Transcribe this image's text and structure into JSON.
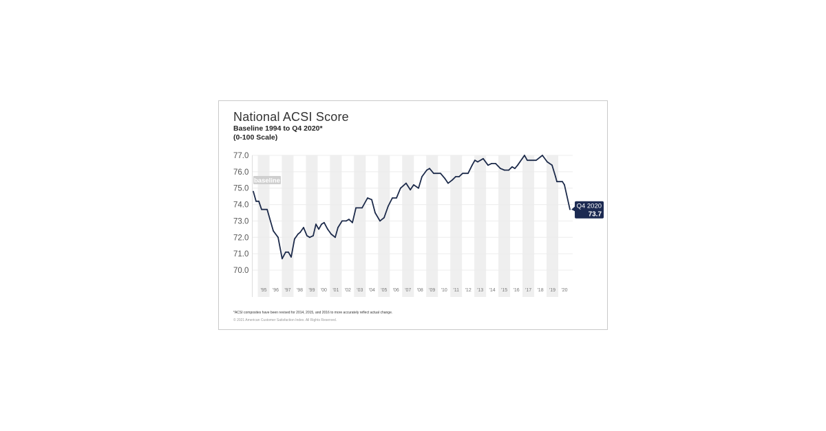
{
  "chart_data": {
    "type": "line",
    "title": "National ACSI Score",
    "subtitle": [
      "Baseline 1994 to Q4 2020*",
      "(0-100 Scale)"
    ],
    "xlabel": "",
    "ylabel": "",
    "ylim": [
      70.0,
      77.0
    ],
    "y_ticks": [
      "77.0",
      "76.0",
      "75.0",
      "74.0",
      "73.0",
      "72.0",
      "71.0",
      "70.0"
    ],
    "x_ticks": [
      "'95",
      "'96",
      "'97",
      "'98",
      "'99",
      "'00",
      "'01",
      "'02",
      "'03",
      "'04",
      "'05",
      "'06",
      "'07",
      "'08",
      "'09",
      "'10",
      "'11",
      "'12",
      "'13",
      "'14",
      "'15",
      "'16",
      "'17",
      "'18",
      "'19",
      "'20"
    ],
    "grid": "horizontal",
    "alternating_year_bands": true,
    "baseline_label": "baseline",
    "line_color": "#1c2a4a",
    "series": [
      {
        "points": [
          [
            1994.14,
            74.8
          ],
          [
            1994.37,
            74.2
          ],
          [
            1994.6,
            74.2
          ],
          [
            1994.83,
            73.7
          ],
          [
            1995.29,
            73.7
          ],
          [
            1995.8,
            72.4
          ],
          [
            1996.2,
            72.0
          ],
          [
            1996.54,
            70.7
          ],
          [
            1996.83,
            71.1
          ],
          [
            1997.06,
            71.1
          ],
          [
            1997.29,
            70.8
          ],
          [
            1997.57,
            71.9
          ],
          [
            1997.86,
            72.2
          ],
          [
            1998.03,
            72.3
          ],
          [
            1998.32,
            72.6
          ],
          [
            1998.6,
            72.1
          ],
          [
            1998.83,
            72.0
          ],
          [
            1999.12,
            72.1
          ],
          [
            1999.35,
            72.8
          ],
          [
            1999.58,
            72.5
          ],
          [
            1999.81,
            72.8
          ],
          [
            2000.03,
            72.9
          ],
          [
            2000.32,
            72.5
          ],
          [
            2000.61,
            72.2
          ],
          [
            2000.95,
            72.0
          ],
          [
            2001.18,
            72.6
          ],
          [
            2001.52,
            73.0
          ],
          [
            2001.86,
            73.0
          ],
          [
            2002.09,
            73.1
          ],
          [
            2002.38,
            72.9
          ],
          [
            2002.67,
            73.8
          ],
          [
            2003.18,
            73.8
          ],
          [
            2003.64,
            74.4
          ],
          [
            2003.98,
            74.3
          ],
          [
            2004.27,
            73.5
          ],
          [
            2004.67,
            73.0
          ],
          [
            2005.01,
            73.2
          ],
          [
            2005.35,
            73.9
          ],
          [
            2005.7,
            74.4
          ],
          [
            2006.04,
            74.4
          ],
          [
            2006.38,
            75.0
          ],
          [
            2006.84,
            75.3
          ],
          [
            2007.19,
            74.9
          ],
          [
            2007.47,
            75.2
          ],
          [
            2007.87,
            75.0
          ],
          [
            2008.16,
            75.7
          ],
          [
            2008.56,
            76.1
          ],
          [
            2008.79,
            76.2
          ],
          [
            2009.13,
            75.9
          ],
          [
            2009.7,
            75.9
          ],
          [
            2010.05,
            75.6
          ],
          [
            2010.33,
            75.3
          ],
          [
            2010.68,
            75.5
          ],
          [
            2010.96,
            75.7
          ],
          [
            2011.25,
            75.7
          ],
          [
            2011.54,
            75.9
          ],
          [
            2011.99,
            75.9
          ],
          [
            2012.33,
            76.4
          ],
          [
            2012.56,
            76.7
          ],
          [
            2012.79,
            76.6
          ],
          [
            2013.25,
            76.8
          ],
          [
            2013.65,
            76.4
          ],
          [
            2013.94,
            76.5
          ],
          [
            2014.28,
            76.5
          ],
          [
            2014.68,
            76.2
          ],
          [
            2015.02,
            76.1
          ],
          [
            2015.37,
            76.1
          ],
          [
            2015.65,
            76.3
          ],
          [
            2015.88,
            76.2
          ],
          [
            2016.11,
            76.4
          ],
          [
            2016.68,
            77.0
          ],
          [
            2016.91,
            76.7
          ],
          [
            2017.65,
            76.7
          ],
          [
            2018.17,
            77.0
          ],
          [
            2018.57,
            76.6
          ],
          [
            2018.97,
            76.4
          ],
          [
            2019.26,
            75.7
          ],
          [
            2019.37,
            75.4
          ],
          [
            2019.83,
            75.4
          ],
          [
            2020.0,
            75.2
          ],
          [
            2020.46,
            73.7
          ]
        ]
      }
    ],
    "annotation": {
      "label": "Q4 2020",
      "value": "73.7",
      "color": "#1c2a52"
    }
  },
  "footnote": "*ACSI composites have been revised for 2014, 2015, and 2016 to more accurately reflect actual change.",
  "copyright": "© 2021 American Customer Satisfaction Index. All Rights Reserved."
}
